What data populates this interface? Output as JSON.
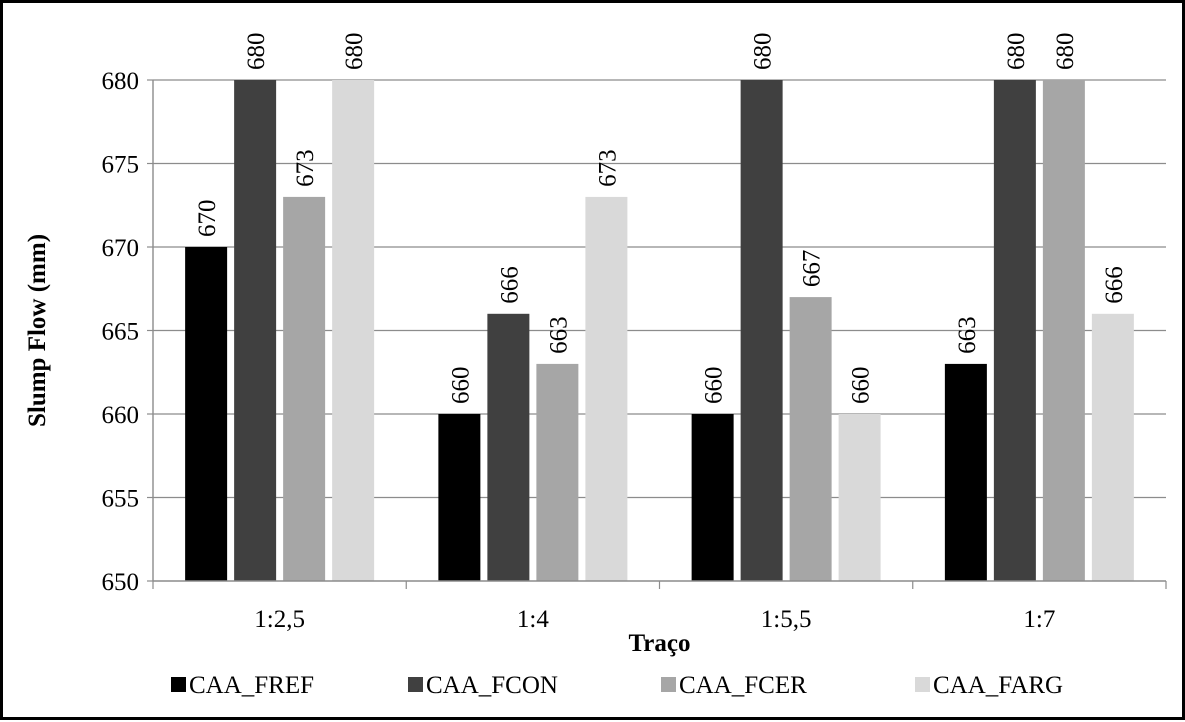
{
  "chart_data": {
    "type": "bar",
    "xlabel": "Traço",
    "ylabel": "Slump Flow (mm)",
    "categories": [
      "1:2,5",
      "1:4",
      "1:5,5",
      "1:7"
    ],
    "ylim": [
      650,
      680
    ],
    "yticks": [
      650,
      655,
      660,
      665,
      670,
      675,
      680
    ],
    "grid": true,
    "legend_position": "bottom",
    "series": [
      {
        "name": "CAA_FREF",
        "color": "#000000",
        "values": [
          670,
          660,
          660,
          663
        ]
      },
      {
        "name": "CAA_FCON",
        "color": "#404040",
        "values": [
          680,
          666,
          680,
          680
        ]
      },
      {
        "name": "CAA_FCER",
        "color": "#a6a6a6",
        "values": [
          673,
          663,
          667,
          680
        ]
      },
      {
        "name": "CAA_FARG",
        "color": "#d9d9d9",
        "values": [
          680,
          673,
          660,
          666
        ]
      }
    ]
  }
}
